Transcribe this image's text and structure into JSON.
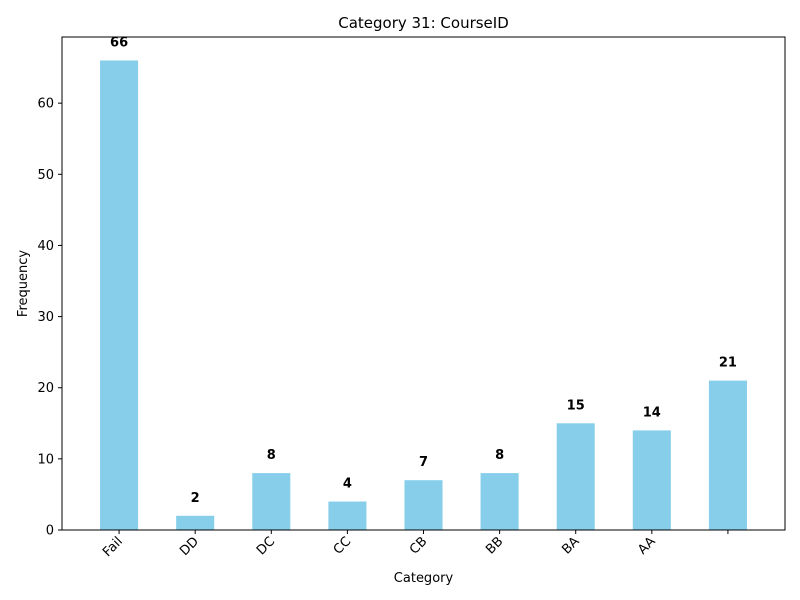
{
  "chart_data": {
    "type": "bar",
    "title": "Category 31: CourseID",
    "xlabel": "Category",
    "ylabel": "Frequency",
    "categories": [
      "Fail",
      "DD",
      "DC",
      "CC",
      "CB",
      "BB",
      "BA",
      "AA",
      ""
    ],
    "values": [
      66,
      2,
      8,
      4,
      7,
      8,
      15,
      14,
      21
    ],
    "data_labels": [
      "66",
      "2",
      "8",
      "4",
      "7",
      "8",
      "15",
      "14",
      "21"
    ],
    "ylim": [
      0,
      69.3
    ],
    "yticks": [
      0,
      10,
      20,
      30,
      40,
      50,
      60
    ],
    "grid": false,
    "legend": "none",
    "bar_color": "#87ceeb"
  }
}
